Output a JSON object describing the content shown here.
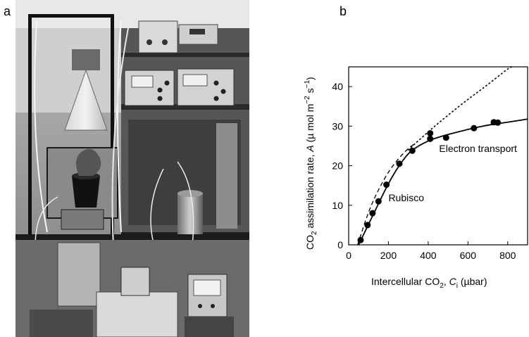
{
  "panels": {
    "a": "a",
    "b": "b"
  },
  "chart_data": {
    "type": "scatter",
    "ylabel_main": "CO",
    "ylabel_sub2": "2",
    "ylabel_mid": " assimilation rate, ",
    "ylabel_var": "A",
    "ylabel_unit1": " (µ mol m",
    "ylabel_sup1": "−2",
    "ylabel_unit2": " s",
    "ylabel_sup2": "−1",
    "ylabel_end": ")",
    "xlabel_main": "Intercellular CO",
    "xlabel_sub": "2",
    "xlabel_mid": ", ",
    "xlabel_var": "C",
    "xlabel_var_sub": "i",
    "xlabel_unit": " (µbar)",
    "xlim": [
      0,
      900
    ],
    "ylim": [
      0,
      45
    ],
    "xticks": [
      0,
      200,
      400,
      600,
      800
    ],
    "yticks": [
      0,
      10,
      20,
      30,
      40
    ],
    "points": [
      {
        "x": 60,
        "y": 1.2
      },
      {
        "x": 95,
        "y": 5.0
      },
      {
        "x": 120,
        "y": 8.0
      },
      {
        "x": 150,
        "y": 11.0
      },
      {
        "x": 190,
        "y": 15.2
      },
      {
        "x": 255,
        "y": 20.5
      },
      {
        "x": 320,
        "y": 23.8
      },
      {
        "x": 410,
        "y": 28.2
      },
      {
        "x": 410,
        "y": 26.8
      },
      {
        "x": 490,
        "y": 27.1
      },
      {
        "x": 630,
        "y": 29.5
      },
      {
        "x": 730,
        "y": 31.0
      },
      {
        "x": 750,
        "y": 30.9
      }
    ],
    "curves": [
      {
        "kind": "solid",
        "points": [
          [
            50,
            0
          ],
          [
            100,
            5.2
          ],
          [
            150,
            10.4
          ],
          [
            200,
            15.6
          ],
          [
            250,
            19.8
          ],
          [
            300,
            23.2
          ],
          [
            350,
            25.0
          ],
          [
            400,
            26.3
          ],
          [
            450,
            27.2
          ],
          [
            500,
            27.9
          ],
          [
            600,
            29.2
          ],
          [
            700,
            30.3
          ],
          [
            800,
            31.0
          ],
          [
            900,
            31.8
          ]
        ]
      },
      {
        "kind": "dashed",
        "points": [
          [
            45,
            0
          ],
          [
            100,
            8.5
          ],
          [
            150,
            14.0
          ],
          [
            200,
            18.5
          ],
          [
            250,
            21.8
          ],
          [
            300,
            24.4
          ],
          [
            330,
            25.5
          ]
        ]
      },
      {
        "kind": "dotted",
        "points": [
          [
            300,
            24.0
          ],
          [
            400,
            28.6
          ],
          [
            500,
            32.8
          ],
          [
            600,
            36.8
          ],
          [
            700,
            40.5
          ],
          [
            800,
            44.5
          ],
          [
            820,
            45.0
          ]
        ]
      }
    ],
    "annotations": [
      {
        "text": "Electron transport",
        "x": 455,
        "y": 23.5
      },
      {
        "text": "Rubisco",
        "x": 200,
        "y": 11.0
      }
    ]
  }
}
